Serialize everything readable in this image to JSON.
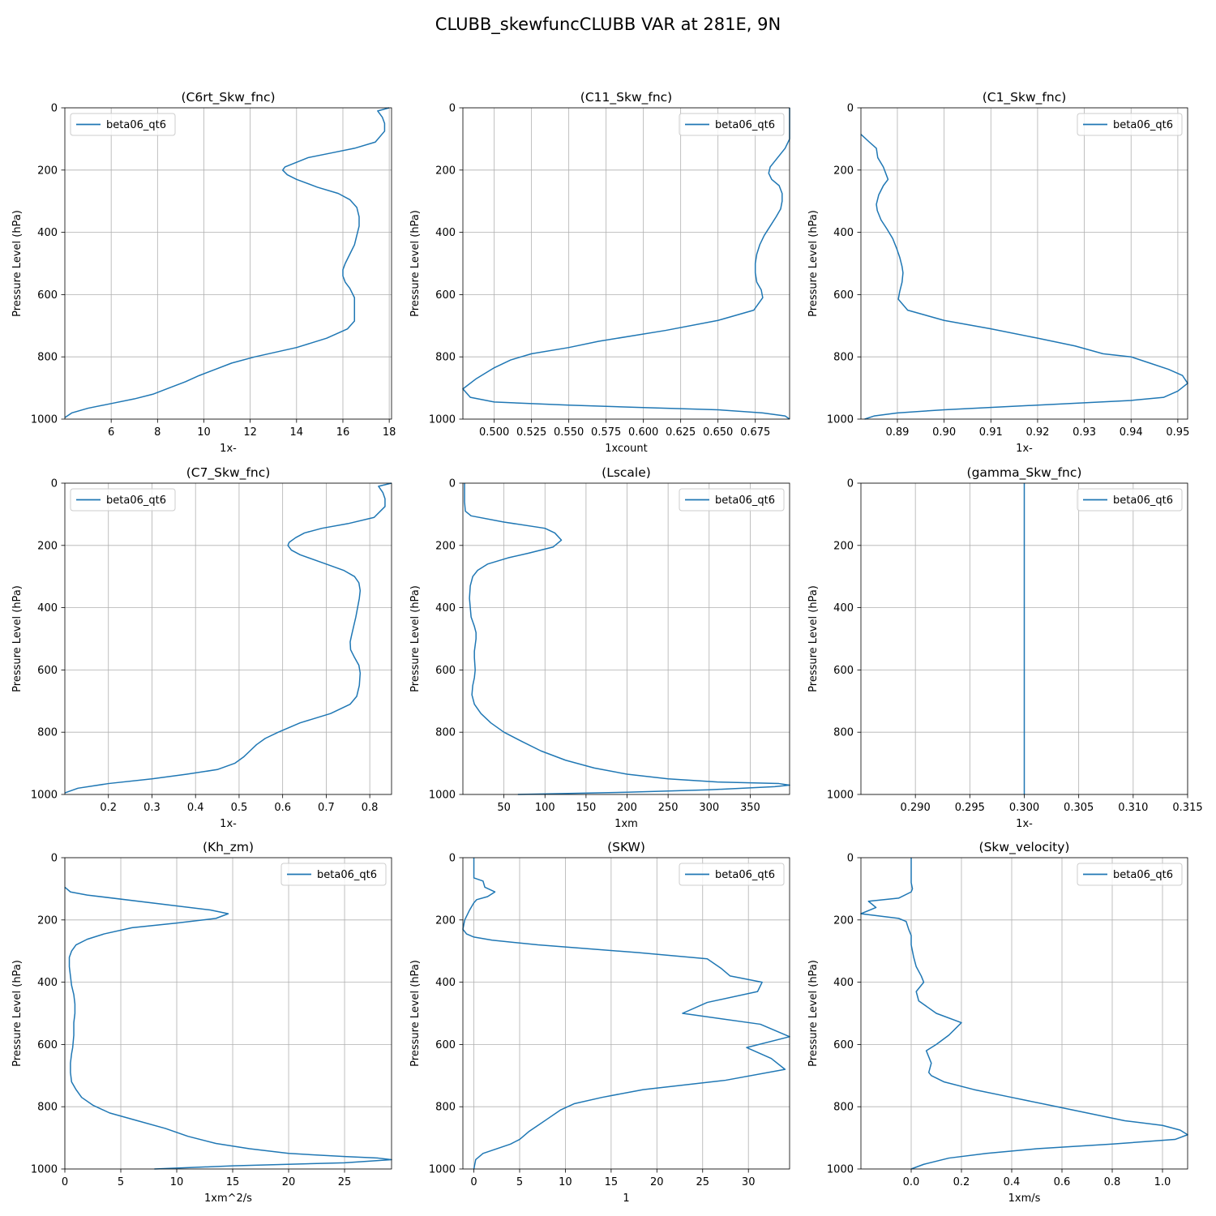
{
  "figure_title": "CLUBB_skewfuncCLUBB VAR at 281E, 9N",
  "series_color": "#1f77b4",
  "chart_data": [
    {
      "type": "line",
      "title": "(C6rt_Skw_fnc)",
      "xlabel": "1x-",
      "ylabel": "Pressure Level (hPa)",
      "xlim": [
        4.0,
        18.1
      ],
      "xticks": [
        6,
        8,
        10,
        12,
        14,
        16,
        18
      ],
      "ylim": [
        0,
        1000
      ],
      "yticks": [
        0,
        200,
        400,
        600,
        800,
        1000
      ],
      "y_inverted": true,
      "grid": true,
      "legend_loc": "upper left",
      "series": [
        {
          "name": "beta06_qt6",
          "x": [
            18.0,
            17.5,
            17.7,
            17.8,
            17.8,
            17.4,
            16.5,
            15.5,
            14.5,
            14.0,
            13.5,
            13.4,
            13.6,
            14.0,
            14.9,
            15.8,
            16.3,
            16.6,
            16.7,
            16.7,
            16.6,
            16.5,
            16.3,
            16.1,
            16.0,
            16.0,
            16.1,
            16.3,
            16.5,
            16.5,
            16.5,
            16.2,
            15.3,
            14.0,
            12.2,
            11.2,
            10.5,
            9.8,
            9.2,
            8.5,
            7.8,
            7.0,
            6.0,
            5.0,
            4.3,
            4.0
          ],
          "y": [
            0,
            10,
            30,
            50,
            75,
            110,
            130,
            145,
            160,
            175,
            190,
            200,
            215,
            230,
            255,
            275,
            295,
            320,
            350,
            380,
            410,
            440,
            470,
            500,
            520,
            540,
            560,
            580,
            610,
            650,
            685,
            710,
            740,
            770,
            800,
            820,
            840,
            860,
            880,
            900,
            920,
            935,
            950,
            965,
            980,
            995
          ]
        }
      ]
    },
    {
      "type": "line",
      "title": "(C11_Skw_fnc)",
      "xlabel": "1xcount",
      "ylabel": "Pressure Level (hPa)",
      "xlim": [
        0.479,
        0.698
      ],
      "xticks": [
        0.5,
        0.525,
        0.55,
        0.575,
        0.6,
        0.625,
        0.65,
        0.675
      ],
      "ylim": [
        0,
        1000
      ],
      "yticks": [
        0,
        200,
        400,
        600,
        800,
        1000
      ],
      "y_inverted": true,
      "grid": true,
      "legend_loc": "upper right",
      "series": [
        {
          "name": "beta06_qt6",
          "x": [
            0.698,
            0.698,
            0.698,
            0.698,
            0.695,
            0.69,
            0.685,
            0.684,
            0.686,
            0.691,
            0.693,
            0.693,
            0.692,
            0.689,
            0.685,
            0.681,
            0.678,
            0.676,
            0.675,
            0.675,
            0.676,
            0.679,
            0.68,
            0.674,
            0.65,
            0.615,
            0.57,
            0.55,
            0.525,
            0.511,
            0.5,
            0.488,
            0.479,
            0.484,
            0.5,
            0.55,
            0.6,
            0.65,
            0.68,
            0.695,
            0.698
          ],
          "y": [
            0,
            40,
            80,
            100,
            130,
            160,
            190,
            210,
            230,
            250,
            275,
            300,
            325,
            350,
            380,
            410,
            440,
            470,
            500,
            530,
            560,
            585,
            610,
            650,
            683,
            715,
            750,
            770,
            790,
            810,
            835,
            870,
            903,
            930,
            945,
            955,
            963,
            970,
            980,
            990,
            1000
          ]
        }
      ]
    },
    {
      "type": "line",
      "title": "(C1_Skw_fnc)",
      "xlabel": "1x-",
      "ylabel": "Pressure Level (hPa)",
      "xlim": [
        0.8822,
        0.9521
      ],
      "xticks": [
        0.89,
        0.9,
        0.91,
        0.92,
        0.93,
        0.94,
        0.95
      ],
      "ylim": [
        0,
        1000
      ],
      "yticks": [
        0,
        200,
        400,
        600,
        800,
        1000
      ],
      "y_inverted": true,
      "grid": true,
      "legend_loc": "upper right",
      "series": [
        {
          "name": "beta06_qt6",
          "x": [
            0.8822,
            0.884,
            0.8855,
            0.8858,
            0.887,
            0.888,
            0.887,
            0.886,
            0.8855,
            0.8857,
            0.8865,
            0.8878,
            0.889,
            0.8898,
            0.8905,
            0.891,
            0.8912,
            0.891,
            0.8905,
            0.8902,
            0.8922,
            0.9,
            0.91,
            0.92,
            0.928,
            0.934,
            0.94,
            0.944,
            0.948,
            0.951,
            0.9521,
            0.95,
            0.947,
            0.94,
            0.92,
            0.9,
            0.89,
            0.885,
            0.883
          ],
          "y": [
            85,
            110,
            130,
            160,
            190,
            230,
            250,
            280,
            310,
            330,
            360,
            390,
            420,
            450,
            480,
            510,
            530,
            560,
            590,
            615,
            650,
            683,
            710,
            740,
            765,
            790,
            800,
            820,
            840,
            860,
            885,
            910,
            930,
            940,
            955,
            970,
            980,
            990,
            1000
          ]
        }
      ]
    },
    {
      "type": "line",
      "title": "(C7_Skw_fnc)",
      "xlabel": "1x-",
      "ylabel": "Pressure Level (hPa)",
      "xlim": [
        0.1,
        0.85
      ],
      "xticks": [
        0.2,
        0.3,
        0.4,
        0.5,
        0.6,
        0.7,
        0.8
      ],
      "ylim": [
        0,
        1000
      ],
      "yticks": [
        0,
        200,
        400,
        600,
        800,
        1000
      ],
      "y_inverted": true,
      "grid": true,
      "legend_loc": "upper left",
      "series": [
        {
          "name": "beta06_qt6",
          "x": [
            0.85,
            0.82,
            0.83,
            0.835,
            0.835,
            0.81,
            0.75,
            0.69,
            0.65,
            0.63,
            0.615,
            0.612,
            0.62,
            0.64,
            0.7,
            0.74,
            0.765,
            0.775,
            0.778,
            0.776,
            0.772,
            0.768,
            0.763,
            0.758,
            0.755,
            0.756,
            0.765,
            0.775,
            0.778,
            0.776,
            0.77,
            0.755,
            0.71,
            0.64,
            0.59,
            0.56,
            0.54,
            0.525,
            0.51,
            0.49,
            0.45,
            0.38,
            0.3,
            0.2,
            0.13,
            0.1
          ],
          "y": [
            0,
            10,
            30,
            50,
            75,
            110,
            130,
            145,
            160,
            175,
            190,
            200,
            215,
            230,
            260,
            280,
            300,
            320,
            345,
            370,
            400,
            430,
            460,
            490,
            510,
            535,
            560,
            585,
            610,
            650,
            685,
            710,
            740,
            770,
            800,
            820,
            840,
            860,
            880,
            900,
            920,
            935,
            950,
            965,
            980,
            995
          ]
        }
      ]
    },
    {
      "type": "line",
      "title": "(Lscale)",
      "xlabel": "1xm",
      "ylabel": "Pressure Level (hPa)",
      "xlim": [
        0,
        398
      ],
      "xticks": [
        50,
        100,
        150,
        200,
        250,
        300,
        350
      ],
      "ylim": [
        0,
        1000
      ],
      "yticks": [
        0,
        200,
        400,
        600,
        800,
        1000
      ],
      "y_inverted": true,
      "grid": true,
      "legend_loc": "upper right",
      "series": [
        {
          "name": "beta06_qt6",
          "x": [
            2,
            2,
            2,
            3,
            10,
            50,
            100,
            112,
            120,
            110,
            80,
            55,
            30,
            18,
            12,
            9,
            8,
            9,
            10,
            14,
            16,
            16,
            15,
            14,
            14,
            15,
            14,
            12,
            11,
            14,
            22,
            34,
            50,
            72,
            95,
            125,
            160,
            200,
            250,
            310,
            385,
            398,
            380,
            300,
            200,
            67
          ],
          "y": [
            0,
            30,
            60,
            90,
            105,
            125,
            145,
            160,
            183,
            205,
            225,
            240,
            260,
            280,
            300,
            330,
            370,
            400,
            430,
            460,
            480,
            500,
            520,
            540,
            560,
            600,
            625,
            650,
            680,
            710,
            740,
            770,
            800,
            830,
            860,
            890,
            915,
            935,
            950,
            960,
            965,
            970,
            975,
            985,
            993,
            1000
          ]
        }
      ]
    },
    {
      "type": "line",
      "title": "(gamma_Skw_fnc)",
      "xlabel": "1x-",
      "ylabel": "Pressure Level (hPa)",
      "xlim": [
        0.285,
        0.315
      ],
      "xticks": [
        0.29,
        0.295,
        0.3,
        0.305,
        0.31,
        0.315
      ],
      "ylim": [
        0,
        1000
      ],
      "yticks": [
        0,
        200,
        400,
        600,
        800,
        1000
      ],
      "y_inverted": true,
      "grid": true,
      "legend_loc": "upper right",
      "series": [
        {
          "name": "beta06_qt6",
          "x": [
            0.3,
            0.3
          ],
          "y": [
            0,
            1000
          ]
        }
      ]
    },
    {
      "type": "line",
      "title": "(Kh_zm)",
      "xlabel": "1xm^2/s",
      "ylabel": "Pressure Level (hPa)",
      "xlim": [
        0,
        29.2
      ],
      "xticks": [
        0,
        5,
        10,
        15,
        20,
        25
      ],
      "ylim": [
        0,
        1000
      ],
      "yticks": [
        0,
        200,
        400,
        600,
        800,
        1000
      ],
      "y_inverted": true,
      "grid": true,
      "legend_loc": "upper right",
      "series": [
        {
          "name": "beta06_qt6",
          "x": [
            0,
            0.5,
            2.0,
            10.0,
            13.0,
            14.6,
            13.5,
            10.0,
            6.0,
            3.5,
            2.0,
            1.0,
            0.6,
            0.4,
            0.4,
            0.5,
            0.6,
            0.8,
            0.9,
            0.9,
            0.8,
            0.8,
            0.7,
            0.6,
            0.5,
            0.5,
            0.6,
            1.0,
            1.5,
            2.5,
            4.0,
            6.5,
            9.0,
            11.0,
            13.5,
            16.5,
            20.0,
            25.0,
            28.0,
            29.2,
            25.0,
            15.0,
            8.0
          ],
          "y": [
            95,
            110,
            120,
            155,
            168,
            180,
            195,
            210,
            225,
            245,
            262,
            280,
            300,
            320,
            350,
            380,
            410,
            440,
            470,
            500,
            530,
            570,
            610,
            630,
            660,
            690,
            720,
            745,
            770,
            795,
            820,
            845,
            870,
            895,
            918,
            935,
            950,
            960,
            965,
            970,
            980,
            990,
            1000
          ]
        }
      ]
    },
    {
      "type": "line",
      "title": "(SKW)",
      "xlabel": "1",
      "ylabel": "Pressure Level (hPa)",
      "xlim": [
        -1.2,
        34.5
      ],
      "xticks": [
        0,
        5,
        10,
        15,
        20,
        25,
        30
      ],
      "ylim": [
        0,
        1000
      ],
      "yticks": [
        0,
        200,
        400,
        600,
        800,
        1000
      ],
      "y_inverted": true,
      "grid": true,
      "legend_loc": "upper right",
      "series": [
        {
          "name": "beta06_qt6",
          "x": [
            0,
            0,
            0,
            1.0,
            1.2,
            2.3,
            1.5,
            0.3,
            0,
            -0.5,
            -1.0,
            -1.2,
            -0.8,
            0.0,
            2.0,
            7.0,
            18.0,
            25.5,
            27.0,
            28.0,
            31.5,
            31.0,
            25.5,
            22.8,
            31.3,
            34.5,
            29.8,
            32.5,
            34.0,
            27.5,
            18.5,
            14.0,
            11.0,
            9.5,
            8.0,
            7.0,
            6.0,
            5.0,
            4.0,
            2.5,
            1.0,
            0.2,
            0.0
          ],
          "y": [
            0,
            30,
            65,
            75,
            95,
            110,
            125,
            135,
            145,
            170,
            200,
            230,
            245,
            255,
            265,
            280,
            305,
            325,
            355,
            380,
            400,
            430,
            465,
            500,
            535,
            575,
            610,
            645,
            680,
            715,
            745,
            770,
            790,
            810,
            840,
            860,
            880,
            905,
            920,
            935,
            950,
            970,
            1000
          ]
        }
      ]
    },
    {
      "type": "line",
      "title": "(Skw_velocity)",
      "xlabel": "1xm/s",
      "ylabel": "Pressure Level (hPa)",
      "xlim": [
        -0.2,
        1.1
      ],
      "xticks": [
        0.0,
        0.2,
        0.4,
        0.6,
        0.8,
        1.0
      ],
      "ylim": [
        0,
        1000
      ],
      "yticks": [
        0,
        200,
        400,
        600,
        800,
        1000
      ],
      "y_inverted": true,
      "grid": true,
      "legend_loc": "upper right",
      "series": [
        {
          "name": "beta06_qt6",
          "x": [
            0.0,
            0.0,
            0.0,
            0.005,
            0.0,
            -0.05,
            -0.17,
            -0.14,
            -0.2,
            -0.05,
            -0.02,
            -0.01,
            0.0,
            0.0,
            0.01,
            0.02,
            0.04,
            0.05,
            0.02,
            0.03,
            0.1,
            0.2,
            0.15,
            0.1,
            0.06,
            0.07,
            0.08,
            0.07,
            0.08,
            0.13,
            0.25,
            0.4,
            0.55,
            0.7,
            0.85,
            1.0,
            1.07,
            1.1,
            1.05,
            0.8,
            0.5,
            0.3,
            0.15,
            0.05,
            0.0
          ],
          "y": [
            0,
            50,
            80,
            100,
            110,
            130,
            140,
            160,
            180,
            195,
            205,
            230,
            250,
            280,
            320,
            350,
            380,
            400,
            430,
            460,
            500,
            530,
            570,
            600,
            620,
            640,
            660,
            690,
            700,
            720,
            745,
            770,
            795,
            820,
            845,
            860,
            875,
            890,
            905,
            920,
            935,
            950,
            965,
            985,
            1000
          ]
        }
      ]
    }
  ]
}
